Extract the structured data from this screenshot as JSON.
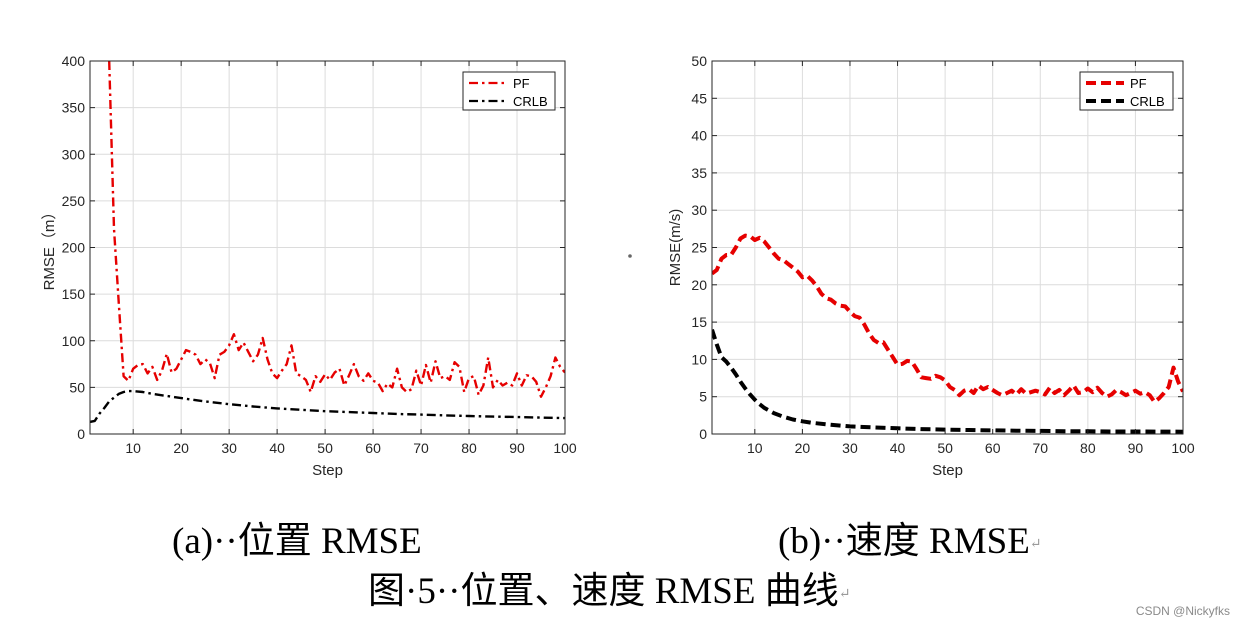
{
  "colors": {
    "pf": "#e60000",
    "crlb": "#000000",
    "grid": "#dcdcdc",
    "axis": "#262626"
  },
  "captions": {
    "a": "(a)··位置 RMSE",
    "b": "(b)··速度 RMSE",
    "figure": "图·5··位置、速度 RMSE 曲线",
    "return_mark": "↵"
  },
  "watermark": "CSDN @Nickyfks",
  "chart_data": [
    {
      "type": "line",
      "xlabel": "Step",
      "ylabel": "RMSE（m）",
      "xlim": [
        1,
        100
      ],
      "ylim": [
        0,
        400
      ],
      "xticks": [
        10,
        20,
        30,
        40,
        50,
        60,
        70,
        80,
        90,
        100
      ],
      "yticks": [
        0,
        50,
        100,
        150,
        200,
        250,
        300,
        350,
        400
      ],
      "grid": true,
      "legend_position": "top-right",
      "series": [
        {
          "name": "PF",
          "style": "dash-dot",
          "x": [
            5,
            6,
            7,
            8,
            9,
            10,
            11,
            12,
            13,
            14,
            15,
            16,
            17,
            18,
            19,
            20,
            21,
            22,
            23,
            24,
            25,
            26,
            27,
            28,
            29,
            30,
            31,
            32,
            33,
            34,
            35,
            36,
            37,
            38,
            39,
            40,
            41,
            42,
            43,
            44,
            45,
            46,
            47,
            48,
            49,
            50,
            51,
            52,
            53,
            54,
            55,
            56,
            57,
            58,
            59,
            60,
            61,
            62,
            63,
            64,
            65,
            66,
            67,
            68,
            69,
            70,
            71,
            72,
            73,
            74,
            75,
            76,
            77,
            78,
            79,
            80,
            81,
            82,
            83,
            84,
            85,
            86,
            87,
            88,
            89,
            90,
            91,
            92,
            93,
            94,
            95,
            96,
            97,
            98,
            99,
            100
          ],
          "y": [
            400,
            220,
            140,
            62,
            57,
            70,
            74,
            75,
            65,
            72,
            58,
            68,
            86,
            66,
            70,
            80,
            90,
            88,
            85,
            75,
            80,
            76,
            60,
            85,
            88,
            95,
            107,
            90,
            98,
            88,
            78,
            85,
            103,
            80,
            65,
            60,
            68,
            75,
            95,
            65,
            62,
            58,
            45,
            62,
            56,
            64,
            58,
            66,
            70,
            52,
            63,
            75,
            62,
            57,
            65,
            57,
            55,
            46,
            54,
            50,
            70,
            50,
            45,
            48,
            68,
            52,
            74,
            55,
            78,
            60,
            62,
            58,
            77,
            72,
            45,
            60,
            62,
            42,
            52,
            82,
            50,
            58,
            52,
            55,
            52,
            65,
            52,
            63,
            62,
            56,
            40,
            50,
            62,
            82,
            72,
            66
          ]
        },
        {
          "name": "CRLB",
          "style": "dash-dot",
          "x": [
            1,
            2,
            3,
            4,
            5,
            6,
            7,
            8,
            9,
            10,
            11,
            12,
            14,
            16,
            18,
            20,
            22,
            25,
            30,
            35,
            40,
            45,
            50,
            55,
            60,
            65,
            70,
            75,
            80,
            85,
            90,
            95,
            100
          ],
          "y": [
            13,
            14,
            22,
            28,
            35,
            39,
            43,
            45,
            46,
            46,
            45.5,
            45,
            43,
            41.5,
            40,
            38.5,
            37,
            35,
            32,
            29.5,
            27.5,
            26,
            24.5,
            23.5,
            22.5,
            21.5,
            20.8,
            20,
            19.3,
            18.7,
            18.2,
            17.6,
            17
          ]
        }
      ]
    },
    {
      "type": "line",
      "xlabel": "Step",
      "ylabel": "RMSE(m/s)",
      "xlim": [
        1,
        100
      ],
      "ylim": [
        0,
        50
      ],
      "xticks": [
        10,
        20,
        30,
        40,
        50,
        60,
        70,
        80,
        90,
        100
      ],
      "yticks": [
        0,
        5,
        10,
        15,
        20,
        25,
        30,
        35,
        40,
        45,
        50
      ],
      "grid": true,
      "legend_position": "top-right",
      "series": [
        {
          "name": "PF",
          "style": "dashed",
          "x": [
            1,
            2,
            3,
            4,
            5,
            6,
            7,
            8,
            9,
            10,
            11,
            12,
            13,
            14,
            15,
            16,
            17,
            18,
            19,
            20,
            21,
            22,
            23,
            24,
            25,
            26,
            27,
            28,
            29,
            30,
            31,
            32,
            33,
            34,
            35,
            36,
            37,
            38,
            39,
            40,
            41,
            42,
            43,
            44,
            45,
            46,
            47,
            48,
            49,
            50,
            51,
            52,
            53,
            54,
            55,
            56,
            57,
            58,
            59,
            60,
            61,
            62,
            63,
            64,
            65,
            66,
            67,
            68,
            69,
            70,
            71,
            72,
            73,
            74,
            75,
            76,
            77,
            78,
            79,
            80,
            81,
            82,
            83,
            84,
            85,
            86,
            87,
            88,
            89,
            90,
            91,
            92,
            93,
            94,
            95,
            96,
            97,
            98,
            99,
            100
          ],
          "y": [
            21.5,
            22,
            23.5,
            24,
            24,
            25,
            26.2,
            26.6,
            26.5,
            26,
            26.3,
            25.8,
            25,
            24.2,
            23.5,
            23.3,
            22.8,
            22.3,
            21.8,
            21,
            21.2,
            20.6,
            19.8,
            18.8,
            18.2,
            18,
            17.5,
            17.2,
            17.1,
            16.4,
            15.8,
            15.6,
            14.7,
            13.5,
            12.6,
            12.2,
            12.3,
            11.3,
            10.3,
            9.3,
            9.4,
            9.8,
            9.7,
            8.7,
            7.6,
            7.5,
            7.4,
            7.8,
            7.6,
            7.2,
            6.3,
            5.9,
            5.2,
            5.8,
            6.0,
            5.5,
            6.5,
            6.0,
            6.3,
            5.9,
            5.5,
            5.2,
            5.5,
            5.8,
            5.3,
            6.0,
            5.4,
            5.6,
            5.8,
            5.6,
            5.3,
            6.2,
            5.5,
            5.9,
            5.2,
            5.8,
            6.5,
            5.5,
            5.6,
            6.1,
            5.6,
            6.2,
            5.5,
            5.0,
            5.3,
            5.9,
            5.6,
            5.2,
            5.5,
            5.8,
            5.4,
            5.6,
            5.2,
            4.3,
            4.8,
            5.5,
            6.3,
            8.9,
            7.0,
            5.7
          ]
        },
        {
          "name": "CRLB",
          "style": "dashed",
          "x": [
            1,
            2,
            3,
            4,
            5,
            6,
            7,
            8,
            9,
            10,
            11,
            12,
            14,
            16,
            18,
            20,
            22,
            25,
            28,
            30,
            35,
            40,
            45,
            50,
            55,
            60,
            65,
            70,
            75,
            80,
            85,
            90,
            95,
            100
          ],
          "y": [
            14,
            12,
            10.3,
            9.7,
            8.9,
            8.0,
            7.0,
            6.1,
            5.3,
            4.6,
            4.0,
            3.5,
            2.8,
            2.3,
            1.95,
            1.7,
            1.5,
            1.3,
            1.12,
            1.02,
            0.88,
            0.76,
            0.66,
            0.59,
            0.53,
            0.48,
            0.44,
            0.41,
            0.38,
            0.36,
            0.34,
            0.33,
            0.32,
            0.31
          ]
        }
      ]
    }
  ]
}
